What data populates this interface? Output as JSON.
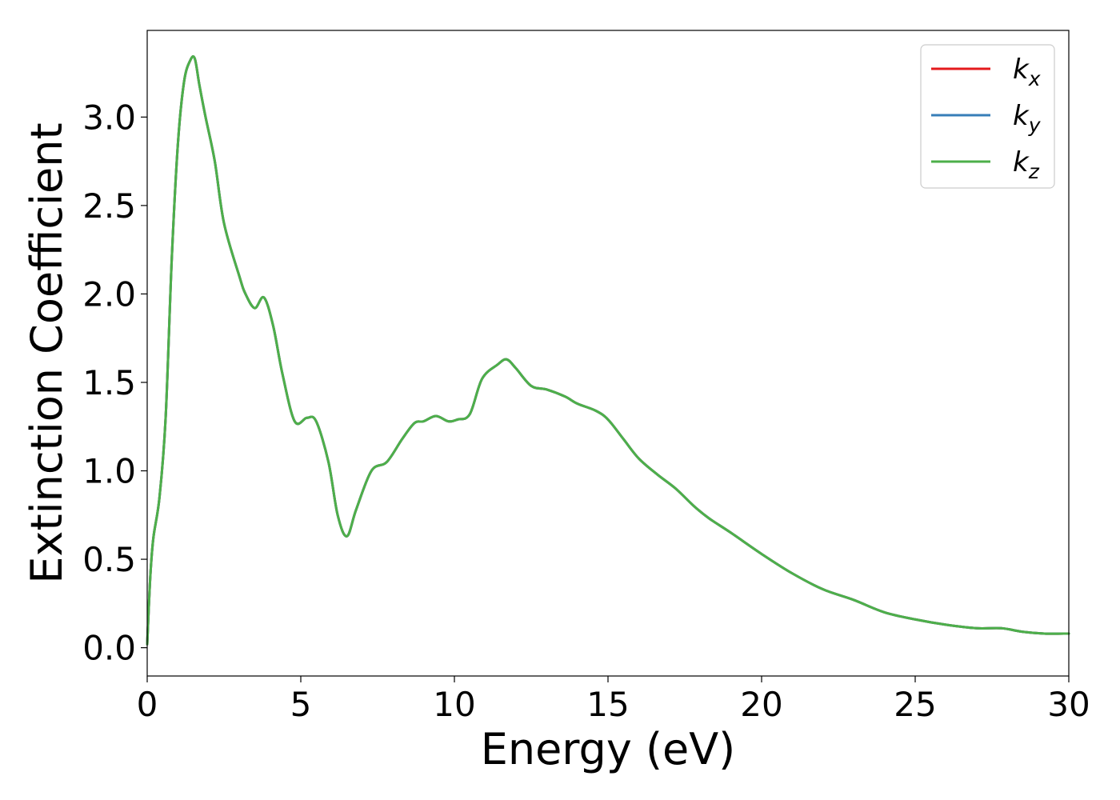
{
  "chart_data": {
    "type": "line",
    "title": "",
    "xlabel": "Energy (eV)",
    "ylabel": "Extinction Coefficient",
    "xlim": [
      0,
      30
    ],
    "ylim": [
      -0.16,
      3.49
    ],
    "xticks": [
      "0",
      "5",
      "10",
      "15",
      "20",
      "25",
      "30"
    ],
    "yticks": [
      "0.0",
      "0.5",
      "1.0",
      "1.5",
      "2.0",
      "2.5",
      "3.0"
    ],
    "grid": false,
    "legend_position": "top-right",
    "series": [
      {
        "name": "k_x",
        "color": "#e41a1c",
        "x": [
          0,
          0.1,
          0.2,
          0.4,
          0.6,
          0.8,
          1.0,
          1.2,
          1.4,
          1.55,
          1.7,
          1.9,
          2.2,
          2.5,
          3.0,
          3.2,
          3.5,
          3.8,
          4.1,
          4.4,
          4.8,
          5.2,
          5.5,
          5.9,
          6.2,
          6.5,
          6.8,
          7.3,
          7.8,
          8.3,
          8.7,
          9.0,
          9.4,
          9.8,
          10.1,
          10.5,
          10.9,
          11.4,
          11.7,
          12.0,
          12.5,
          13.0,
          13.6,
          14.0,
          14.6,
          15.0,
          15.5,
          16.0,
          16.6,
          17.2,
          17.8,
          18.3,
          19.0,
          20.0,
          21.0,
          22.0,
          23.0,
          24.0,
          25.0,
          26.0,
          27.0,
          27.8,
          28.5,
          29.2,
          30.0
        ],
        "y": [
          0.02,
          0.4,
          0.62,
          0.85,
          1.3,
          2.2,
          2.85,
          3.2,
          3.32,
          3.33,
          3.18,
          3.0,
          2.75,
          2.4,
          2.1,
          2.0,
          1.92,
          1.98,
          1.82,
          1.55,
          1.28,
          1.3,
          1.28,
          1.05,
          0.75,
          0.63,
          0.78,
          1.0,
          1.05,
          1.18,
          1.27,
          1.28,
          1.31,
          1.28,
          1.29,
          1.32,
          1.52,
          1.6,
          1.63,
          1.58,
          1.48,
          1.46,
          1.42,
          1.38,
          1.34,
          1.29,
          1.18,
          1.07,
          0.98,
          0.9,
          0.8,
          0.73,
          0.65,
          0.53,
          0.42,
          0.33,
          0.27,
          0.2,
          0.16,
          0.13,
          0.11,
          0.11,
          0.09,
          0.08,
          0.08
        ]
      },
      {
        "name": "k_y",
        "color": "#377eb8",
        "x": [
          0,
          0.1,
          0.2,
          0.4,
          0.6,
          0.8,
          1.0,
          1.2,
          1.4,
          1.55,
          1.7,
          1.9,
          2.2,
          2.5,
          3.0,
          3.2,
          3.5,
          3.8,
          4.1,
          4.4,
          4.8,
          5.2,
          5.5,
          5.9,
          6.2,
          6.5,
          6.8,
          7.3,
          7.8,
          8.3,
          8.7,
          9.0,
          9.4,
          9.8,
          10.1,
          10.5,
          10.9,
          11.4,
          11.7,
          12.0,
          12.5,
          13.0,
          13.6,
          14.0,
          14.6,
          15.0,
          15.5,
          16.0,
          16.6,
          17.2,
          17.8,
          18.3,
          19.0,
          20.0,
          21.0,
          22.0,
          23.0,
          24.0,
          25.0,
          26.0,
          27.0,
          27.8,
          28.5,
          29.2,
          30.0
        ],
        "y": [
          0.02,
          0.4,
          0.62,
          0.85,
          1.3,
          2.2,
          2.85,
          3.2,
          3.32,
          3.33,
          3.18,
          3.0,
          2.75,
          2.4,
          2.1,
          2.0,
          1.92,
          1.98,
          1.82,
          1.55,
          1.28,
          1.3,
          1.28,
          1.05,
          0.75,
          0.63,
          0.78,
          1.0,
          1.05,
          1.18,
          1.27,
          1.28,
          1.31,
          1.28,
          1.29,
          1.32,
          1.52,
          1.6,
          1.63,
          1.58,
          1.48,
          1.46,
          1.42,
          1.38,
          1.34,
          1.29,
          1.18,
          1.07,
          0.98,
          0.9,
          0.8,
          0.73,
          0.65,
          0.53,
          0.42,
          0.33,
          0.27,
          0.2,
          0.16,
          0.13,
          0.11,
          0.11,
          0.09,
          0.08,
          0.08
        ]
      },
      {
        "name": "k_z",
        "color": "#4daf4a",
        "x": [
          0,
          0.1,
          0.2,
          0.4,
          0.6,
          0.8,
          1.0,
          1.2,
          1.4,
          1.55,
          1.7,
          1.9,
          2.2,
          2.5,
          3.0,
          3.2,
          3.5,
          3.8,
          4.1,
          4.4,
          4.8,
          5.2,
          5.5,
          5.9,
          6.2,
          6.5,
          6.8,
          7.3,
          7.8,
          8.3,
          8.7,
          9.0,
          9.4,
          9.8,
          10.1,
          10.5,
          10.9,
          11.4,
          11.7,
          12.0,
          12.5,
          13.0,
          13.6,
          14.0,
          14.6,
          15.0,
          15.5,
          16.0,
          16.6,
          17.2,
          17.8,
          18.3,
          19.0,
          20.0,
          21.0,
          22.0,
          23.0,
          24.0,
          25.0,
          26.0,
          27.0,
          27.8,
          28.5,
          29.2,
          30.0
        ],
        "y": [
          0.02,
          0.4,
          0.62,
          0.85,
          1.3,
          2.2,
          2.85,
          3.2,
          3.32,
          3.33,
          3.18,
          3.0,
          2.75,
          2.4,
          2.1,
          2.0,
          1.92,
          1.98,
          1.82,
          1.55,
          1.28,
          1.3,
          1.28,
          1.05,
          0.75,
          0.63,
          0.78,
          1.0,
          1.05,
          1.18,
          1.27,
          1.28,
          1.31,
          1.28,
          1.29,
          1.32,
          1.52,
          1.6,
          1.63,
          1.58,
          1.48,
          1.46,
          1.42,
          1.38,
          1.34,
          1.29,
          1.18,
          1.07,
          0.98,
          0.9,
          0.8,
          0.73,
          0.65,
          0.53,
          0.42,
          0.33,
          0.27,
          0.2,
          0.16,
          0.13,
          0.11,
          0.11,
          0.09,
          0.08,
          0.08
        ]
      }
    ]
  }
}
